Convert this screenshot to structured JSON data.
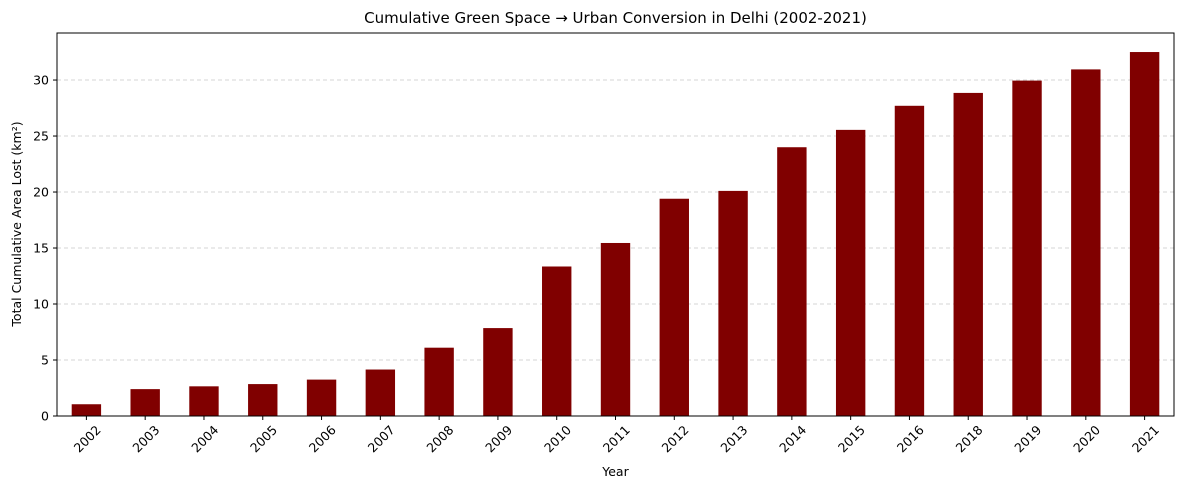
{
  "chart_data": {
    "type": "bar",
    "title": "Cumulative Green Space → Urban Conversion in Delhi (2002-2021)",
    "xlabel": "Year",
    "ylabel": "Total Cumulative Area Lost (km²)",
    "categories": [
      "2002",
      "2003",
      "2004",
      "2005",
      "2006",
      "2007",
      "2008",
      "2009",
      "2010",
      "2011",
      "2012",
      "2013",
      "2014",
      "2015",
      "2016",
      "2018",
      "2019",
      "2020",
      "2021"
    ],
    "values": [
      1.05,
      2.4,
      2.65,
      2.85,
      3.25,
      4.15,
      6.1,
      7.85,
      13.35,
      15.45,
      19.4,
      20.1,
      24.0,
      25.55,
      27.7,
      28.85,
      29.95,
      30.95,
      32.5
    ],
    "ylim": [
      0,
      34.2
    ],
    "yticks": [
      0,
      5,
      10,
      15,
      20,
      25,
      30
    ],
    "grid": "y-dashed",
    "bar_color": "#800000"
  }
}
